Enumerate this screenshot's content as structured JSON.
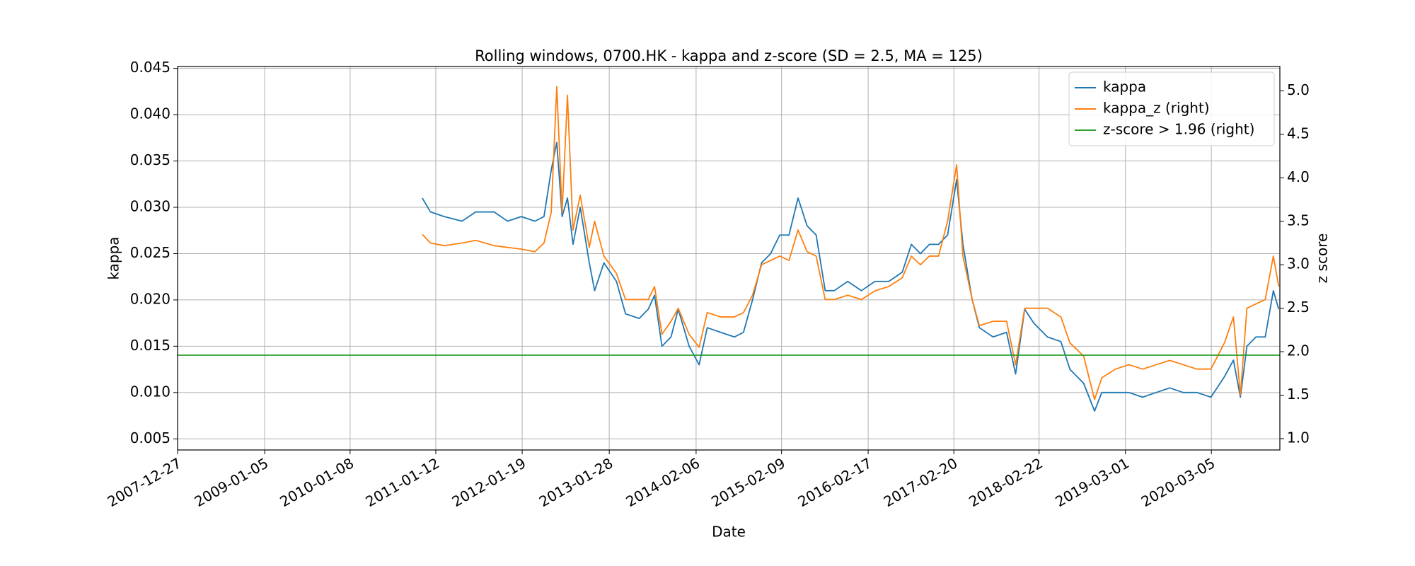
{
  "chart_data": {
    "type": "line",
    "title": "Rolling windows, 0700.HK - kappa and z-score (SD = 2.5, MA = 125)",
    "x_label": "Date",
    "y_label": "kappa",
    "y2_label": "z score",
    "x": [
      "2010-11-15",
      "2010-12-20",
      "2011-02-17",
      "2011-05-05",
      "2011-07-03",
      "2011-09-20",
      "2011-11-17",
      "2012-01-15",
      "2012-03-14",
      "2012-04-22",
      "2012-05-23",
      "2012-06-16",
      "2012-07-09",
      "2012-08-01",
      "2012-08-25",
      "2012-09-25",
      "2012-11-03",
      "2012-11-26",
      "2013-01-05",
      "2013-02-28",
      "2013-04-08",
      "2013-06-06",
      "2013-07-15",
      "2013-08-11",
      "2013-09-12",
      "2013-10-21",
      "2013-11-21",
      "2014-01-07",
      "2014-02-19",
      "2014-03-26",
      "2014-05-23",
      "2014-07-21",
      "2014-08-29",
      "2014-10-07",
      "2014-11-15",
      "2014-12-24",
      "2015-02-01",
      "2015-03-13",
      "2015-04-21",
      "2015-05-30",
      "2015-07-08",
      "2015-08-16",
      "2015-09-24",
      "2015-11-21",
      "2016-01-19",
      "2016-03-17",
      "2016-05-16",
      "2016-07-13",
      "2016-08-21",
      "2016-09-29",
      "2016-11-07",
      "2016-12-16",
      "2017-01-24",
      "2017-03-04",
      "2017-03-31",
      "2017-05-10",
      "2017-06-10",
      "2017-08-08",
      "2017-10-05",
      "2017-11-13",
      "2017-12-22",
      "2018-01-30",
      "2018-03-30",
      "2018-05-27",
      "2018-07-05",
      "2018-09-02",
      "2018-10-19",
      "2018-11-19",
      "2019-01-17",
      "2019-03-16",
      "2019-05-14",
      "2019-07-11",
      "2019-09-08",
      "2019-11-05",
      "2020-01-03",
      "2020-03-03",
      "2020-04-30",
      "2020-06-08",
      "2020-07-08",
      "2020-08-05",
      "2020-09-13",
      "2020-10-23",
      "2020-11-27",
      "2020-12-20"
    ],
    "series": [
      {
        "name": "kappa",
        "color": "#1f77b4",
        "axis": "y",
        "values": [
          0.031,
          0.0295,
          0.029,
          0.0285,
          0.0295,
          0.0295,
          0.0285,
          0.029,
          0.0285,
          0.029,
          0.034,
          0.037,
          0.029,
          0.031,
          0.026,
          0.03,
          0.024,
          0.021,
          0.024,
          0.022,
          0.0185,
          0.018,
          0.019,
          0.0205,
          0.015,
          0.016,
          0.019,
          0.015,
          0.013,
          0.017,
          0.0165,
          0.016,
          0.0165,
          0.02,
          0.024,
          0.025,
          0.027,
          0.027,
          0.031,
          0.028,
          0.027,
          0.021,
          0.021,
          0.022,
          0.021,
          0.022,
          0.022,
          0.023,
          0.026,
          0.025,
          0.026,
          0.026,
          0.027,
          0.033,
          0.026,
          0.02,
          0.017,
          0.016,
          0.0165,
          0.012,
          0.019,
          0.0175,
          0.016,
          0.0155,
          0.0125,
          0.011,
          0.008,
          0.01,
          0.01,
          0.01,
          0.0095,
          0.01,
          0.0105,
          0.01,
          0.01,
          0.0095,
          0.0117,
          0.0135,
          0.0095,
          0.015,
          0.016,
          0.016,
          0.021,
          0.019
        ]
      },
      {
        "name": "kappa_z (right)",
        "color": "#ff7f0e",
        "axis": "y2",
        "values": [
          3.35,
          3.25,
          3.22,
          3.25,
          3.28,
          3.22,
          3.2,
          3.18,
          3.15,
          3.25,
          3.6,
          5.05,
          3.6,
          4.95,
          3.4,
          3.8,
          3.2,
          3.5,
          3.1,
          2.9,
          2.6,
          2.6,
          2.6,
          2.75,
          2.2,
          2.35,
          2.5,
          2.2,
          2.05,
          2.45,
          2.4,
          2.4,
          2.45,
          2.65,
          3.0,
          3.05,
          3.1,
          3.05,
          3.4,
          3.15,
          3.1,
          2.6,
          2.6,
          2.65,
          2.6,
          2.7,
          2.75,
          2.85,
          3.1,
          3.0,
          3.1,
          3.1,
          3.5,
          4.15,
          3.1,
          2.6,
          2.3,
          2.35,
          2.35,
          1.85,
          2.5,
          2.5,
          2.5,
          2.4,
          2.1,
          1.95,
          1.45,
          1.7,
          1.8,
          1.85,
          1.8,
          1.85,
          1.9,
          1.85,
          1.8,
          1.8,
          2.1,
          2.4,
          1.5,
          2.5,
          2.55,
          2.6,
          3.1,
          2.75
        ]
      }
    ],
    "reference_lines": [
      {
        "name": "z-score > 1.96 (right)",
        "color": "#2ca02c",
        "axis": "y2",
        "value": 1.96
      }
    ],
    "xlim": [
      "2007-12-27",
      "2020-12-25"
    ],
    "xticks": [
      "2007-12-27",
      "2009-01-05",
      "2010-01-08",
      "2011-01-12",
      "2012-01-19",
      "2013-01-28",
      "2014-02-06",
      "2015-02-09",
      "2016-02-17",
      "2017-02-20",
      "2018-02-22",
      "2019-03-01",
      "2020-03-05"
    ],
    "ylim": [
      0.0038,
      0.0452
    ],
    "yticks": [
      0.005,
      {
        "value": 0.01,
        "label": "0.010"
      },
      0.015,
      {
        "value": 0.02,
        "label": "0.020"
      },
      0.025,
      {
        "value": 0.03,
        "label": "0.030"
      },
      0.035,
      {
        "value": 0.04,
        "label": "0.040"
      },
      0.045
    ],
    "y2lim": [
      0.87,
      5.28
    ],
    "y2ticks": [
      {
        "value": 1,
        "label": "1.0"
      },
      1.5,
      {
        "value": 2,
        "label": "2.0"
      },
      2.5,
      {
        "value": 3,
        "label": "3.0"
      },
      3.5,
      {
        "value": 4,
        "label": "4.0"
      },
      4.5,
      {
        "value": 5,
        "label": "5.0"
      }
    ],
    "grid": true,
    "legend": "upper right"
  }
}
